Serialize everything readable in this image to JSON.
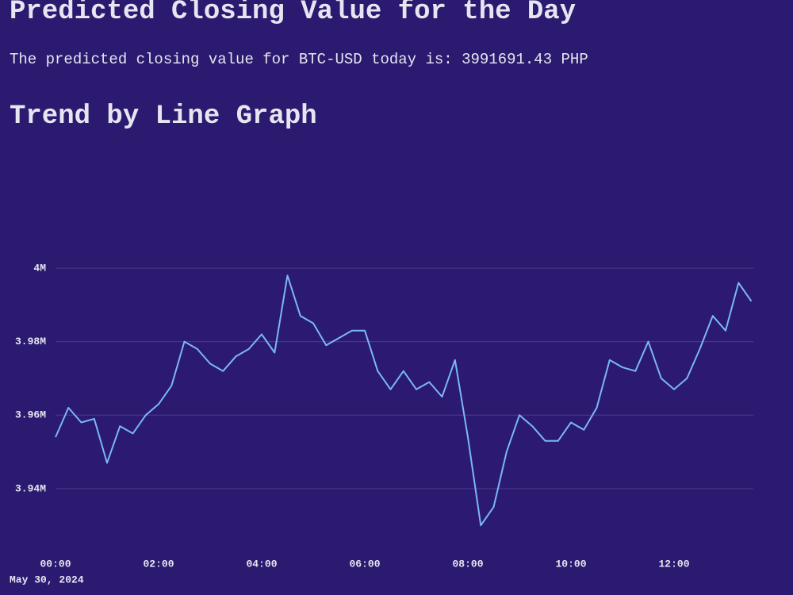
{
  "header": {
    "title": "Predicted Closing Value for the Day"
  },
  "prediction_text": "The predicted closing value for BTC-USD today is: 3991691.43 PHP",
  "section_title": "Trend by Line Graph",
  "chart_data": {
    "type": "line",
    "color": "#7ab8f5",
    "grid": true,
    "x": [
      "00:00",
      "00:15",
      "00:30",
      "00:45",
      "01:00",
      "01:15",
      "01:30",
      "01:45",
      "02:00",
      "02:15",
      "02:30",
      "02:45",
      "03:00",
      "03:15",
      "03:30",
      "03:45",
      "04:00",
      "04:15",
      "04:30",
      "04:45",
      "05:00",
      "05:15",
      "05:30",
      "05:45",
      "06:00",
      "06:15",
      "06:30",
      "06:45",
      "07:00",
      "07:15",
      "07:30",
      "07:45",
      "08:00",
      "08:15",
      "08:30",
      "08:45",
      "09:00",
      "09:15",
      "09:30",
      "09:45",
      "10:00",
      "10:15",
      "10:30",
      "10:45",
      "11:00",
      "11:15",
      "11:30",
      "11:45",
      "12:00",
      "12:15",
      "12:30",
      "12:45",
      "13:00",
      "13:15",
      "13:30"
    ],
    "values": [
      3954000,
      3962000,
      3958000,
      3959000,
      3947000,
      3957000,
      3955000,
      3960000,
      3963000,
      3968000,
      3980000,
      3978000,
      3974000,
      3972000,
      3976000,
      3978000,
      3982000,
      3977000,
      3998000,
      3987000,
      3985000,
      3979000,
      3981000,
      3983000,
      3983000,
      3972000,
      3967000,
      3972000,
      3967000,
      3969000,
      3965000,
      3975000,
      3954000,
      3930000,
      3935000,
      3950000,
      3960000,
      3957000,
      3953000,
      3953000,
      3958000,
      3956000,
      3962000,
      3975000,
      3973000,
      3972000,
      3980000,
      3970000,
      3967000,
      3970000,
      3978000,
      3987000,
      3983000,
      3996000,
      3991000
    ],
    "xlim": [
      "00:00",
      "13:30"
    ],
    "xticks": [
      "00:00",
      "02:00",
      "04:00",
      "06:00",
      "08:00",
      "10:00",
      "12:00"
    ],
    "date_label": "May 30, 2024",
    "ylim": [
      3924000,
      4000000
    ],
    "yticks": [
      {
        "value": 3940000,
        "label": "3.94M"
      },
      {
        "value": 3960000,
        "label": "3.96M"
      },
      {
        "value": 3980000,
        "label": "3.98M"
      },
      {
        "value": 4000000,
        "label": "4M"
      }
    ]
  }
}
